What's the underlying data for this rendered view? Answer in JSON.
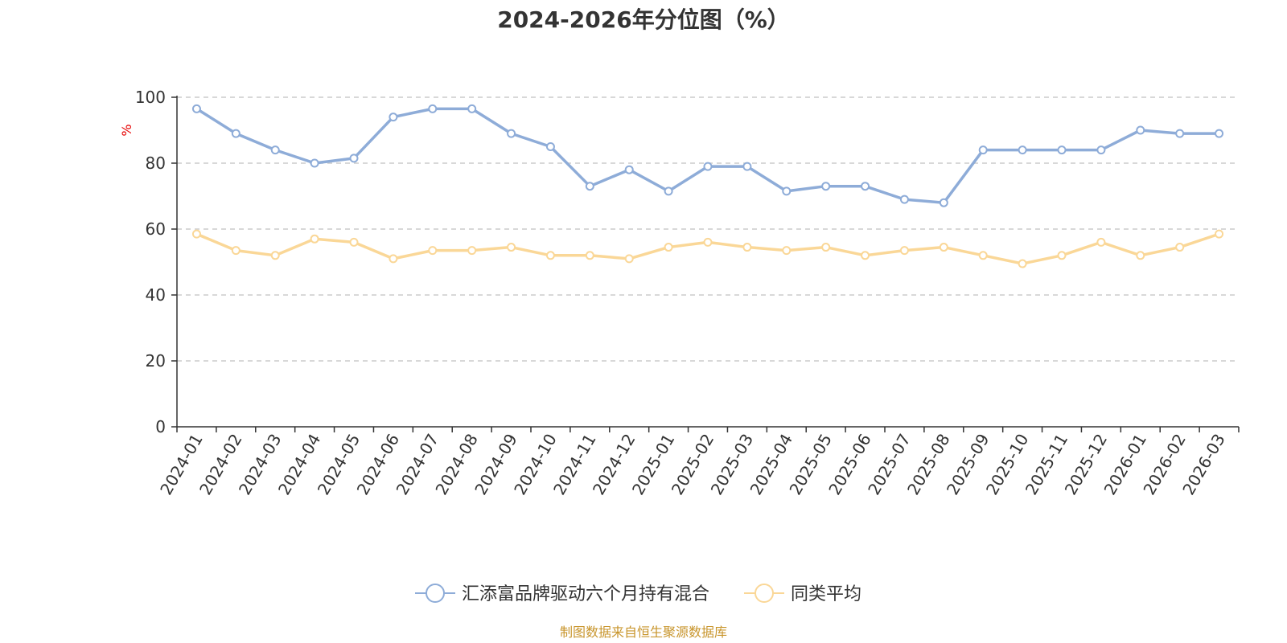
{
  "chart_data": {
    "type": "line",
    "title": "2024-2026年分位图（%）",
    "ylabel": "%",
    "xlabel": "",
    "ylim": [
      0,
      100
    ],
    "yticks": [
      "0",
      "20",
      "40",
      "60",
      "80",
      "100"
    ],
    "ytick_values": [
      0,
      20,
      40,
      60,
      80,
      100
    ],
    "grid": true,
    "legend_position": "bottom-center",
    "categories": [
      "2024-01",
      "2024-02",
      "2024-03",
      "2024-04",
      "2024-05",
      "2024-06",
      "2024-07",
      "2024-08",
      "2024-09",
      "2024-10",
      "2024-11",
      "2024-12",
      "2025-01",
      "2025-02",
      "2025-03",
      "2025-04",
      "2025-05",
      "2025-06",
      "2025-07",
      "2025-08",
      "2025-09",
      "2025-10",
      "2025-11",
      "2025-12",
      "2026-01",
      "2026-02",
      "2026-03"
    ],
    "series": [
      {
        "name": "汇添富品牌驱动六个月持有混合",
        "color": "#8eacd8",
        "values": [
          96.5,
          89,
          84,
          80,
          81.5,
          94,
          96.5,
          96.5,
          89,
          85,
          73,
          78,
          71.5,
          79,
          79,
          71.5,
          73,
          73,
          69,
          68,
          84,
          84,
          84,
          84,
          90,
          89,
          89
        ]
      },
      {
        "name": "同类平均",
        "color": "#fad797",
        "values": [
          58.5,
          53.5,
          52,
          57,
          56,
          51,
          53.5,
          53.5,
          54.5,
          52,
          52,
          51,
          54.5,
          56,
          54.5,
          53.5,
          54.5,
          52,
          53.5,
          54.5,
          52,
          49.5,
          52,
          56,
          52,
          54.5,
          58.5
        ]
      }
    ],
    "source": "制图数据来自恒生聚源数据库"
  }
}
